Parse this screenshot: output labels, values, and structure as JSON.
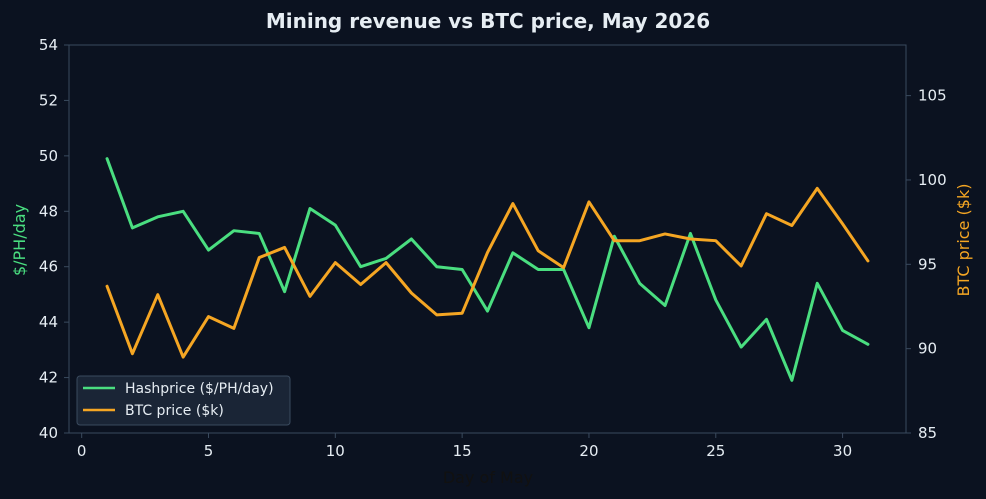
{
  "chart_data": {
    "type": "line",
    "title": "Mining revenue vs BTC price, May 2026",
    "xlabel": "Day of May",
    "ylabel_left": "$/PH/day",
    "ylabel_right": "BTC price ($k)",
    "xlim": [
      -0.5,
      32.5
    ],
    "ylim_left": [
      40,
      54
    ],
    "ylim_right": [
      85,
      108
    ],
    "xticks": [
      0,
      5,
      10,
      15,
      20,
      25,
      30
    ],
    "yticks_left": [
      40,
      42,
      44,
      46,
      48,
      50,
      52,
      54
    ],
    "yticks_right": [
      85,
      90,
      95,
      100,
      105
    ],
    "grid": false,
    "legend_position": "bottom-left",
    "x": [
      1,
      2,
      3,
      4,
      5,
      6,
      7,
      8,
      9,
      10,
      11,
      12,
      13,
      14,
      15,
      16,
      17,
      18,
      19,
      20,
      21,
      22,
      23,
      24,
      25,
      26,
      27,
      28,
      29,
      30,
      31
    ],
    "series": [
      {
        "name": "Hashprice ($/PH/day)",
        "axis": "left",
        "color": "#4ade80",
        "values": [
          49.9,
          47.4,
          47.8,
          48.0,
          46.6,
          47.3,
          47.2,
          45.1,
          48.1,
          47.5,
          46.0,
          46.3,
          47.0,
          46.0,
          45.9,
          44.4,
          46.5,
          45.9,
          45.9,
          43.8,
          47.1,
          45.4,
          44.6,
          47.2,
          44.8,
          43.1,
          44.1,
          41.9,
          45.4,
          43.7,
          43.2
        ]
      },
      {
        "name": "BTC price ($k)",
        "axis": "right",
        "color": "#f5a623",
        "values": [
          93.7,
          89.7,
          93.2,
          89.5,
          91.9,
          91.2,
          95.4,
          96.0,
          93.1,
          95.1,
          93.8,
          95.1,
          93.3,
          92.0,
          92.1,
          95.7,
          98.6,
          95.8,
          94.8,
          98.7,
          96.4,
          96.4,
          96.8,
          96.5,
          96.4,
          94.9,
          98.0,
          97.3,
          99.5,
          97.4,
          95.2
        ]
      }
    ]
  }
}
